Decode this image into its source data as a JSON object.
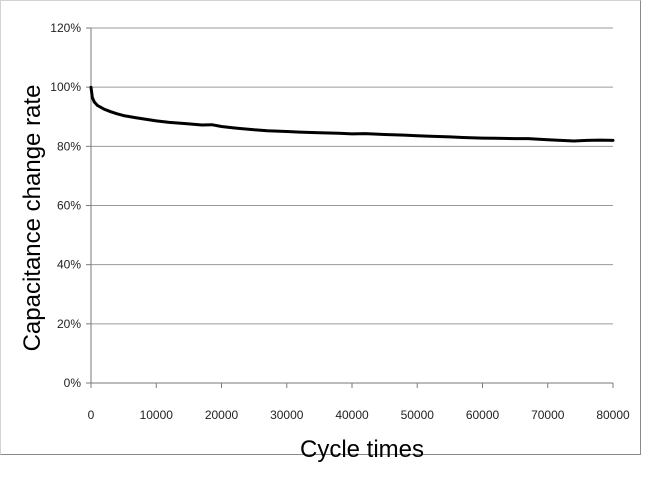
{
  "chart_data": {
    "type": "line",
    "title": "",
    "xlabel": "Cycle times",
    "ylabel": "Capacitance change rate",
    "xlim": [
      0,
      80000
    ],
    "ylim": [
      0,
      120
    ],
    "x_ticks": [
      0,
      10000,
      20000,
      30000,
      40000,
      50000,
      60000,
      70000,
      80000
    ],
    "x_tick_labels": [
      "0",
      "10000",
      "20000",
      "30000",
      "40000",
      "50000",
      "60000",
      "70000",
      "80000"
    ],
    "y_ticks": [
      0,
      20,
      40,
      60,
      80,
      100,
      120
    ],
    "y_tick_labels": [
      "0%",
      "20%",
      "40%",
      "60%",
      "80%",
      "100%",
      "120%"
    ],
    "grid": "horizontal",
    "legend": "none",
    "line_color": "#000000",
    "series": [
      {
        "x": [
          0,
          200,
          500,
          1000,
          2000,
          3000,
          4000,
          5000,
          7000,
          10000,
          12000,
          15000,
          17000,
          18500,
          20000,
          22000,
          25000,
          27000,
          30000,
          32000,
          35000,
          38000,
          40000,
          42000,
          45000,
          48000,
          50000,
          52000,
          55000,
          57000,
          60000,
          62000,
          65000,
          67000,
          70000,
          72000,
          74000,
          76000,
          78000,
          80000
        ],
        "values": [
          100,
          96.5,
          95.0,
          93.8,
          92.6,
          91.7,
          91.0,
          90.4,
          89.6,
          88.6,
          88.1,
          87.6,
          87.2,
          87.3,
          86.7,
          86.2,
          85.6,
          85.3,
          85.0,
          84.8,
          84.6,
          84.4,
          84.2,
          84.3,
          84.0,
          83.8,
          83.6,
          83.4,
          83.2,
          83.0,
          82.8,
          82.7,
          82.6,
          82.6,
          82.2,
          82.0,
          81.8,
          82.0,
          82.1,
          82.0
        ]
      }
    ]
  }
}
